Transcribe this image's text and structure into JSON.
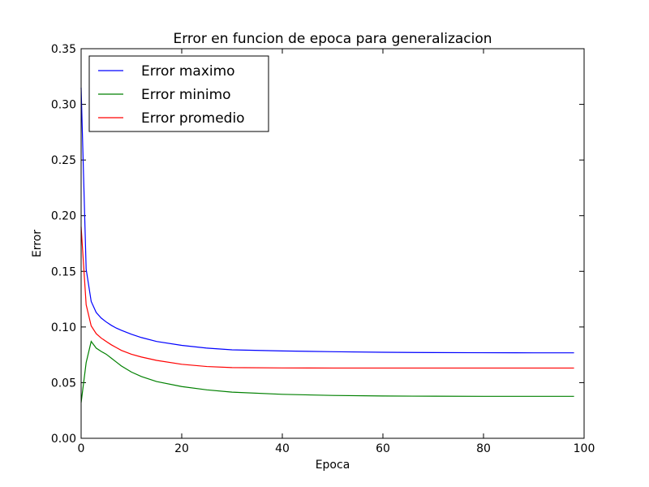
{
  "chart_data": {
    "type": "line",
    "title": "Error en funcion de epoca para generalizacion",
    "xlabel": "Epoca",
    "ylabel": "Error",
    "xlim": [
      0,
      100
    ],
    "ylim": [
      0,
      0.35
    ],
    "grid": false,
    "legend_position": "top-left",
    "x_ticks": [
      0,
      20,
      40,
      60,
      80,
      100
    ],
    "x_tick_labels": [
      "0",
      "20",
      "40",
      "60",
      "80",
      "100"
    ],
    "y_ticks": [
      0,
      0.05,
      0.1,
      0.15,
      0.2,
      0.25,
      0.3,
      0.35
    ],
    "y_tick_labels": [
      "0.00",
      "0.05",
      "0.10",
      "0.15",
      "0.20",
      "0.25",
      "0.30",
      "0.35"
    ],
    "series": [
      {
        "name": "Error maximo",
        "color": "#0000ff",
        "x": [
          0,
          1,
          2,
          3,
          4,
          5,
          6,
          7,
          8,
          10,
          12,
          15,
          20,
          25,
          30,
          40,
          50,
          60,
          70,
          80,
          90,
          98
        ],
        "y": [
          0.315,
          0.152,
          0.123,
          0.113,
          0.108,
          0.1045,
          0.1015,
          0.099,
          0.097,
          0.0935,
          0.0905,
          0.087,
          0.0835,
          0.081,
          0.0795,
          0.0785,
          0.0778,
          0.0773,
          0.077,
          0.0769,
          0.0768,
          0.0768
        ]
      },
      {
        "name": "Error minimo",
        "color": "#008000",
        "x": [
          0,
          1,
          2,
          3,
          4,
          5,
          6,
          7,
          8,
          10,
          12,
          15,
          20,
          25,
          30,
          40,
          50,
          60,
          70,
          80,
          90,
          98
        ],
        "y": [
          0.032,
          0.068,
          0.087,
          0.081,
          0.078,
          0.0755,
          0.072,
          0.0685,
          0.065,
          0.0595,
          0.0555,
          0.051,
          0.0465,
          0.0435,
          0.0415,
          0.0395,
          0.0385,
          0.038,
          0.0378,
          0.0377,
          0.0377,
          0.0377
        ]
      },
      {
        "name": "Error promedio",
        "color": "#ff0000",
        "x": [
          0,
          1,
          2,
          3,
          4,
          5,
          6,
          7,
          8,
          10,
          12,
          15,
          20,
          25,
          30,
          40,
          50,
          60,
          70,
          80,
          90,
          98
        ],
        "y": [
          0.19,
          0.12,
          0.101,
          0.094,
          0.09,
          0.087,
          0.084,
          0.0815,
          0.079,
          0.0755,
          0.073,
          0.07,
          0.0665,
          0.0645,
          0.0635,
          0.0632,
          0.0631,
          0.0631,
          0.0631,
          0.0631,
          0.0631,
          0.0631
        ]
      }
    ]
  }
}
